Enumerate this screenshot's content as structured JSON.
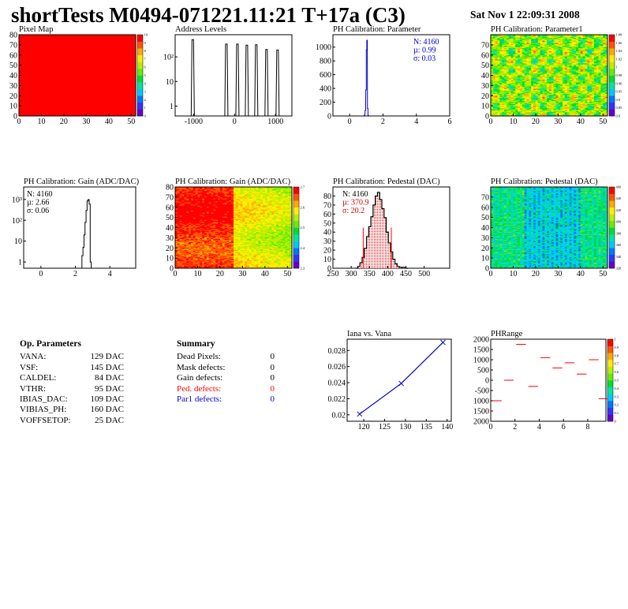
{
  "header": {
    "title": "shortTests M0494-071221.11:21 T+17a (C3)",
    "date": "Sat Nov  1 22:09:31 2008"
  },
  "chart_data": [
    {
      "id": "pixel-map",
      "type": "heatmap",
      "title": "Pixel Map",
      "xlim": [
        0,
        52
      ],
      "ylim": [
        0,
        80
      ],
      "x_ticks": [
        0,
        10,
        20,
        30,
        40,
        50
      ],
      "y_ticks": [
        0,
        10,
        20,
        30,
        40,
        50,
        60,
        70,
        80
      ],
      "z_ticks": [
        0,
        1,
        2,
        3,
        4,
        5,
        6,
        7,
        8,
        9,
        10
      ],
      "uniform_value": 10
    },
    {
      "id": "address-levels",
      "type": "bar",
      "title": "Address Levels",
      "yscale": "log",
      "xlim": [
        -1450,
        1400
      ],
      "x_ticks": [
        -1000,
        0,
        1000
      ],
      "y_ticks": [
        "1",
        "10",
        "10²"
      ],
      "peaks": [
        {
          "x": -1020,
          "y": 500
        },
        {
          "x": -200,
          "y": 330
        },
        {
          "x": 70,
          "y": 330
        },
        {
          "x": 300,
          "y": 300
        },
        {
          "x": 530,
          "y": 310
        },
        {
          "x": 780,
          "y": 200
        },
        {
          "x": 1050,
          "y": 190
        }
      ]
    },
    {
      "id": "ph-calibration-parameter",
      "type": "bar",
      "title": "PH Calibration: Parameter",
      "xlim": [
        -1,
        6
      ],
      "ylim": [
        0,
        1180
      ],
      "x_ticks": [
        0,
        2,
        4,
        6
      ],
      "y_ticks": [
        0,
        200,
        400,
        600,
        800,
        1000
      ],
      "stats": {
        "n": "N: 4160",
        "mean": "µ: 0.99",
        "sigma": "σ: 0.03"
      },
      "bins": [
        [
          0.88,
          10
        ],
        [
          0.93,
          80
        ],
        [
          0.97,
          380
        ],
        [
          1.0,
          960
        ],
        [
          1.03,
          1100
        ],
        [
          1.07,
          110
        ],
        [
          1.1,
          10
        ]
      ]
    },
    {
      "id": "ph-calibration-parameter1",
      "type": "heatmap",
      "title": "PH Calibration: Parameter1",
      "xlim": [
        0,
        52
      ],
      "ylim": [
        0,
        80
      ],
      "x_ticks": [
        0,
        10,
        20,
        30,
        40,
        50
      ],
      "y_ticks": [
        0,
        10,
        20,
        30,
        40,
        50,
        60,
        70
      ],
      "z_ticks": [
        "0.8",
        "0.85",
        "0.9",
        "0.95",
        "0.96",
        "0.98",
        "1",
        "1.02",
        "1.04",
        "1.06",
        "1.08"
      ]
    },
    {
      "id": "gain-histogram",
      "type": "bar",
      "title": "PH Calibration: Gain (ADC/DAC)",
      "yscale": "log",
      "xlim": [
        -1,
        5.5
      ],
      "x_ticks": [
        0,
        2,
        4
      ],
      "y_ticks": [
        "1",
        "10",
        "10²",
        "10³"
      ],
      "stats": {
        "n": "N: 4160",
        "mean": "µ: 2.66",
        "sigma": "σ: 0.06"
      },
      "bins": [
        [
          2.38,
          2
        ],
        [
          2.44,
          5
        ],
        [
          2.5,
          20
        ],
        [
          2.56,
          80
        ],
        [
          2.62,
          300
        ],
        [
          2.68,
          850
        ],
        [
          2.74,
          1000
        ],
        [
          2.8,
          600
        ],
        [
          2.86,
          1
        ]
      ]
    },
    {
      "id": "gain-map",
      "type": "heatmap",
      "title": "PH Calibration: Gain (ADC/DAC)",
      "xlim": [
        0,
        52
      ],
      "ylim": [
        0,
        80
      ],
      "x_ticks": [
        0,
        10,
        20,
        30,
        40,
        50
      ],
      "y_ticks": [
        0,
        10,
        20,
        30,
        40,
        50,
        60,
        70,
        80
      ],
      "z_ticks": [
        "2.3",
        "2.4",
        "2.5",
        "2.6",
        "2.7"
      ]
    },
    {
      "id": "pedestal-histogram",
      "type": "bar",
      "title": "PH Calibration: Pedestal (DAC)",
      "xlim": [
        250,
        570
      ],
      "ylim": [
        0,
        90
      ],
      "x_ticks": [
        250,
        300,
        350,
        400,
        450,
        500
      ],
      "y_ticks": [
        0,
        10,
        20,
        30,
        40,
        50,
        60,
        70,
        80
      ],
      "stats": {
        "n": "N: 4160",
        "mean": "µ: 370.9",
        "sigma": "σ: 20.2"
      },
      "cut_lines": [
        333,
        410
      ],
      "bins": [
        [
          312,
          0
        ],
        [
          318,
          2
        ],
        [
          324,
          6
        ],
        [
          330,
          12
        ],
        [
          336,
          22
        ],
        [
          342,
          35
        ],
        [
          348,
          46
        ],
        [
          354,
          57
        ],
        [
          360,
          70
        ],
        [
          366,
          80
        ],
        [
          372,
          84
        ],
        [
          378,
          76
        ],
        [
          384,
          66
        ],
        [
          390,
          56
        ],
        [
          396,
          40
        ],
        [
          402,
          28
        ],
        [
          408,
          18
        ],
        [
          414,
          10
        ],
        [
          420,
          5
        ],
        [
          426,
          2
        ],
        [
          432,
          1
        ],
        [
          440,
          1
        ],
        [
          450,
          0
        ]
      ]
    },
    {
      "id": "pedestal-map",
      "type": "heatmap",
      "title": "PH Calibration: Pedestal (DAC)",
      "xlim": [
        0,
        52
      ],
      "ylim": [
        0,
        80
      ],
      "x_ticks": [
        0,
        10,
        20,
        30,
        40,
        50
      ],
      "y_ticks": [
        0,
        10,
        20,
        30,
        40,
        50,
        60,
        70
      ],
      "z_ticks": [
        "320",
        "340",
        "360",
        "380",
        "400",
        "420",
        "440",
        "460"
      ]
    },
    {
      "id": "iana-vs-vana",
      "type": "line",
      "title": "Iana vs. Vana",
      "xlim": [
        116,
        141
      ],
      "ylim": [
        0.0192,
        0.0294
      ],
      "x_ticks": [
        120,
        125,
        130,
        135,
        140
      ],
      "y_ticks": [
        "0.02",
        "0.022",
        "0.024",
        "0.026",
        "0.028"
      ],
      "x": [
        119,
        129,
        139
      ],
      "y": [
        0.0201,
        0.0239,
        0.029
      ]
    },
    {
      "id": "phrange",
      "type": "scatter",
      "title": "PHRange",
      "xlim": [
        0,
        9.5
      ],
      "ylim": [
        -2000,
        2000
      ],
      "x_ticks": [
        0,
        2,
        4,
        6,
        8
      ],
      "y_ticks": [
        "2000",
        "1500",
        "1000",
        "500",
        "0",
        "-500",
        "1000",
        "1500",
        "2000"
      ],
      "z_ticks": [
        "0",
        "0.1",
        "0.2",
        "0.3",
        "0.4",
        "0.5",
        "0.6",
        "0.7",
        "0.8",
        "0.9",
        "1"
      ],
      "x": [
        0.5,
        1.5,
        2.5,
        3.5,
        4.5,
        5.5,
        6.5,
        7.5,
        8.5,
        9.3
      ],
      "y": [
        -1000,
        0,
        1750,
        -300,
        1100,
        600,
        850,
        300,
        1000,
        -900
      ]
    }
  ],
  "op_parameters": {
    "heading": "Op. Parameters",
    "rows": [
      {
        "name": "VANA:",
        "value": "129 DAC"
      },
      {
        "name": "VSF:",
        "value": "145 DAC"
      },
      {
        "name": "CALDEL:",
        "value": "84 DAC"
      },
      {
        "name": "VTHR:",
        "value": "95 DAC"
      },
      {
        "name": "IBIAS_DAC:",
        "value": "109 DAC"
      },
      {
        "name": "VIBIAS_PH:",
        "value": "160 DAC"
      },
      {
        "name": "VOFFSETOP:",
        "value": "25 DAC"
      }
    ]
  },
  "summary": {
    "heading": "Summary",
    "rows": [
      {
        "name": "Dead Pixels:",
        "value": "0",
        "color": "#000000"
      },
      {
        "name": "Mask defects:",
        "value": "0",
        "color": "#000000"
      },
      {
        "name": "Gain defects:",
        "value": "0",
        "color": "#000000"
      },
      {
        "name": "Ped. defects:",
        "value": "0",
        "color": "#ff0000"
      },
      {
        "name": "Par1 defects:",
        "value": "0",
        "color": "#0000cc"
      }
    ]
  }
}
